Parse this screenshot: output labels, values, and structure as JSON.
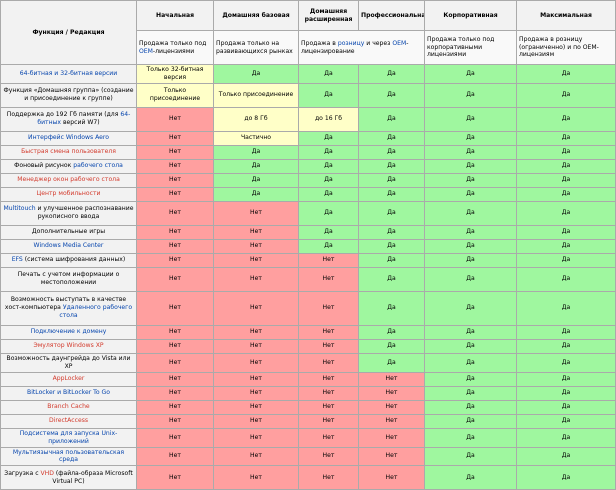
{
  "colors": {
    "yes": "#9ff79f",
    "no": "#ff9f9f",
    "partial": "#ffffc8",
    "header": "#f2f2f2",
    "link": "#0645ad",
    "new_link": "#d33a2c"
  },
  "header": {
    "feature_col": "Функция / Редакция",
    "editions": [
      "Начальная",
      "Домашняя базовая",
      "Домашняя расширенная",
      "Профессиональная",
      "Корпоративная",
      "Максимальная"
    ]
  },
  "sales": [
    [
      {
        "t": "Продажа только под "
      },
      {
        "t": "OEM",
        "l": 1
      },
      {
        "t": "-лицензиями"
      }
    ],
    [
      {
        "t": "Продажа только на развивающихся рынках"
      }
    ],
    [
      {
        "t": "Продажа в "
      },
      {
        "t": "розницу",
        "l": 1
      },
      {
        "t": " и через "
      },
      {
        "t": "OEM",
        "l": 1
      },
      {
        "t": "-лицензирование"
      }
    ],
    [
      {
        "t": "Продажа только под корпоративными лицензиями"
      }
    ],
    [
      {
        "t": "Продажа в розницу (ограниченно) и по OEM-лицензиям"
      }
    ]
  ],
  "rows": [
    {
      "f": [
        {
          "t": "64-битная и 32-битная версии",
          "l": 1
        }
      ],
      "h": 15,
      "c": [
        {
          "t": "Только 32-битная версия",
          "s": "partial"
        },
        {
          "t": "Да",
          "s": "yes"
        },
        {
          "t": "Да",
          "s": "yes"
        },
        {
          "t": "Да",
          "s": "yes"
        },
        {
          "t": "Да",
          "s": "yes"
        },
        {
          "t": "Да",
          "s": "yes"
        }
      ]
    },
    {
      "f": [
        {
          "t": "Функция «Домашняя группа» (создание и присоединение к группе)"
        }
      ],
      "h": 24,
      "c": [
        {
          "t": "Только присоединение",
          "s": "partial"
        },
        {
          "t": "Только присоединение",
          "s": "partial"
        },
        {
          "t": "Да",
          "s": "yes"
        },
        {
          "t": "Да",
          "s": "yes"
        },
        {
          "t": "Да",
          "s": "yes"
        },
        {
          "t": "Да",
          "s": "yes"
        }
      ]
    },
    {
      "f": [
        {
          "t": "Поддержка до 192 Гб памяти (для "
        },
        {
          "t": "64-битных",
          "l": 1
        },
        {
          "t": " версий W7)"
        }
      ],
      "h": 24,
      "c": [
        {
          "t": "Нет",
          "s": "no"
        },
        {
          "t": "до 8 Гб",
          "s": "partial"
        },
        {
          "t": "до 16 Гб",
          "s": "partial"
        },
        {
          "t": "Да",
          "s": "yes"
        },
        {
          "t": "Да",
          "s": "yes"
        },
        {
          "t": "Да",
          "s": "yes"
        }
      ]
    },
    {
      "f": [
        {
          "t": "Интерфейс Windows Aero",
          "l": 1
        }
      ],
      "h": 14,
      "c": [
        {
          "t": "Нет",
          "s": "no"
        },
        {
          "t": "Частично",
          "s": "partial"
        },
        {
          "t": "Да",
          "s": "yes"
        },
        {
          "t": "Да",
          "s": "yes"
        },
        {
          "t": "Да",
          "s": "yes"
        },
        {
          "t": "Да",
          "s": "yes"
        }
      ]
    },
    {
      "f": [
        {
          "t": "Быстрая смена пользователя",
          "l": 2
        }
      ],
      "h": 14,
      "c": [
        {
          "t": "Нет",
          "s": "no"
        },
        {
          "t": "Да",
          "s": "yes"
        },
        {
          "t": "Да",
          "s": "yes"
        },
        {
          "t": "Да",
          "s": "yes"
        },
        {
          "t": "Да",
          "s": "yes"
        },
        {
          "t": "Да",
          "s": "yes"
        }
      ]
    },
    {
      "f": [
        {
          "t": "Фоновый рисунок "
        },
        {
          "t": "рабочего стола",
          "l": 1
        }
      ],
      "h": 14,
      "c": [
        {
          "t": "Нет",
          "s": "no"
        },
        {
          "t": "Да",
          "s": "yes"
        },
        {
          "t": "Да",
          "s": "yes"
        },
        {
          "t": "Да",
          "s": "yes"
        },
        {
          "t": "Да",
          "s": "yes"
        },
        {
          "t": "Да",
          "s": "yes"
        }
      ]
    },
    {
      "f": [
        {
          "t": "Менеджер окон рабочего стола",
          "l": 2
        }
      ],
      "h": 14,
      "c": [
        {
          "t": "Нет",
          "s": "no"
        },
        {
          "t": "Да",
          "s": "yes"
        },
        {
          "t": "Да",
          "s": "yes"
        },
        {
          "t": "Да",
          "s": "yes"
        },
        {
          "t": "Да",
          "s": "yes"
        },
        {
          "t": "Да",
          "s": "yes"
        }
      ]
    },
    {
      "f": [
        {
          "t": "Центр мобильности",
          "l": 2
        }
      ],
      "h": 14,
      "c": [
        {
          "t": "Нет",
          "s": "no"
        },
        {
          "t": "Да",
          "s": "yes"
        },
        {
          "t": "Да",
          "s": "yes"
        },
        {
          "t": "Да",
          "s": "yes"
        },
        {
          "t": "Да",
          "s": "yes"
        },
        {
          "t": "Да",
          "s": "yes"
        }
      ]
    },
    {
      "f": [
        {
          "t": "Multitouch",
          "l": 1
        },
        {
          "t": " и улучшенное распознавание рукописного ввода"
        }
      ],
      "h": 24,
      "c": [
        {
          "t": "Нет",
          "s": "no"
        },
        {
          "t": "Нет",
          "s": "no"
        },
        {
          "t": "Да",
          "s": "yes"
        },
        {
          "t": "Да",
          "s": "yes"
        },
        {
          "t": "Да",
          "s": "yes"
        },
        {
          "t": "Да",
          "s": "yes"
        }
      ]
    },
    {
      "f": [
        {
          "t": "Дополнительные игры"
        }
      ],
      "h": 14,
      "c": [
        {
          "t": "Нет",
          "s": "no"
        },
        {
          "t": "Нет",
          "s": "no"
        },
        {
          "t": "Да",
          "s": "yes"
        },
        {
          "t": "Да",
          "s": "yes"
        },
        {
          "t": "Да",
          "s": "yes"
        },
        {
          "t": "Да",
          "s": "yes"
        }
      ]
    },
    {
      "f": [
        {
          "t": "Windows Media Center",
          "l": 1
        }
      ],
      "h": 14,
      "c": [
        {
          "t": "Нет",
          "s": "no"
        },
        {
          "t": "Нет",
          "s": "no"
        },
        {
          "t": "Да",
          "s": "yes"
        },
        {
          "t": "Да",
          "s": "yes"
        },
        {
          "t": "Да",
          "s": "yes"
        },
        {
          "t": "Да",
          "s": "yes"
        }
      ]
    },
    {
      "f": [
        {
          "t": "EFS",
          "l": 1
        },
        {
          "t": " (система шифрования данных)"
        }
      ],
      "h": 14,
      "c": [
        {
          "t": "Нет",
          "s": "no"
        },
        {
          "t": "Нет",
          "s": "no"
        },
        {
          "t": "Нет",
          "s": "no"
        },
        {
          "t": "Да",
          "s": "yes"
        },
        {
          "t": "Да",
          "s": "yes"
        },
        {
          "t": "Да",
          "s": "yes"
        }
      ]
    },
    {
      "f": [
        {
          "t": "Печать с учетом информации о местоположении"
        }
      ],
      "h": 24,
      "c": [
        {
          "t": "Нет",
          "s": "no"
        },
        {
          "t": "Нет",
          "s": "no"
        },
        {
          "t": "Нет",
          "s": "no"
        },
        {
          "t": "Да",
          "s": "yes"
        },
        {
          "t": "Да",
          "s": "yes"
        },
        {
          "t": "Да",
          "s": "yes"
        }
      ]
    },
    {
      "f": [
        {
          "t": "Возможность выступать в качестве хост-компьютера "
        },
        {
          "t": "Удаленного рабочего стола",
          "l": 1
        }
      ],
      "h": 34,
      "c": [
        {
          "t": "Нет",
          "s": "no"
        },
        {
          "t": "Нет",
          "s": "no"
        },
        {
          "t": "Нет",
          "s": "no"
        },
        {
          "t": "Да",
          "s": "yes"
        },
        {
          "t": "Да",
          "s": "yes"
        },
        {
          "t": "Да",
          "s": "yes"
        }
      ]
    },
    {
      "f": [
        {
          "t": "Подключение к домену",
          "l": 1
        }
      ],
      "h": 14,
      "c": [
        {
          "t": "Нет",
          "s": "no"
        },
        {
          "t": "Нет",
          "s": "no"
        },
        {
          "t": "Нет",
          "s": "no"
        },
        {
          "t": "Да",
          "s": "yes"
        },
        {
          "t": "Да",
          "s": "yes"
        },
        {
          "t": "Да",
          "s": "yes"
        }
      ]
    },
    {
      "f": [
        {
          "t": "Эмулятор Windows XP",
          "l": 2
        }
      ],
      "h": 14,
      "c": [
        {
          "t": "Нет",
          "s": "no"
        },
        {
          "t": "Нет",
          "s": "no"
        },
        {
          "t": "Нет",
          "s": "no"
        },
        {
          "t": "Да",
          "s": "yes"
        },
        {
          "t": "Да",
          "s": "yes"
        },
        {
          "t": "Да",
          "s": "yes"
        }
      ]
    },
    {
      "f": [
        {
          "t": "Возможность даунгрейда до Vista или XP"
        }
      ],
      "h": 14,
      "c": [
        {
          "t": "Нет",
          "s": "no"
        },
        {
          "t": "Нет",
          "s": "no"
        },
        {
          "t": "Нет",
          "s": "no"
        },
        {
          "t": "Да",
          "s": "yes"
        },
        {
          "t": "Да",
          "s": "yes"
        },
        {
          "t": "Да",
          "s": "yes"
        }
      ]
    },
    {
      "f": [
        {
          "t": "AppLocker",
          "l": 2
        }
      ],
      "h": 14,
      "c": [
        {
          "t": "Нет",
          "s": "no"
        },
        {
          "t": "Нет",
          "s": "no"
        },
        {
          "t": "Нет",
          "s": "no"
        },
        {
          "t": "Нет",
          "s": "no"
        },
        {
          "t": "Да",
          "s": "yes"
        },
        {
          "t": "Да",
          "s": "yes"
        }
      ]
    },
    {
      "f": [
        {
          "t": "BitLocker и BitLocker To Go",
          "l": 1
        }
      ],
      "h": 14,
      "c": [
        {
          "t": "Нет",
          "s": "no"
        },
        {
          "t": "Нет",
          "s": "no"
        },
        {
          "t": "Нет",
          "s": "no"
        },
        {
          "t": "Нет",
          "s": "no"
        },
        {
          "t": "Да",
          "s": "yes"
        },
        {
          "t": "Да",
          "s": "yes"
        }
      ]
    },
    {
      "f": [
        {
          "t": "Branch Cache",
          "l": 2
        }
      ],
      "h": 14,
      "c": [
        {
          "t": "Нет",
          "s": "no"
        },
        {
          "t": "Нет",
          "s": "no"
        },
        {
          "t": "Нет",
          "s": "no"
        },
        {
          "t": "Нет",
          "s": "no"
        },
        {
          "t": "Да",
          "s": "yes"
        },
        {
          "t": "Да",
          "s": "yes"
        }
      ]
    },
    {
      "f": [
        {
          "t": "DirectAccess",
          "l": 2
        }
      ],
      "h": 14,
      "c": [
        {
          "t": "Нет",
          "s": "no"
        },
        {
          "t": "Нет",
          "s": "no"
        },
        {
          "t": "Нет",
          "s": "no"
        },
        {
          "t": "Нет",
          "s": "no"
        },
        {
          "t": "Да",
          "s": "yes"
        },
        {
          "t": "Да",
          "s": "yes"
        }
      ]
    },
    {
      "f": [
        {
          "t": "Подсистема для запуска Unix-приложений",
          "l": 1
        }
      ],
      "h": 14,
      "c": [
        {
          "t": "Нет",
          "s": "no"
        },
        {
          "t": "Нет",
          "s": "no"
        },
        {
          "t": "Нет",
          "s": "no"
        },
        {
          "t": "Нет",
          "s": "no"
        },
        {
          "t": "Да",
          "s": "yes"
        },
        {
          "t": "Да",
          "s": "yes"
        }
      ]
    },
    {
      "f": [
        {
          "t": "Мультиязычная пользовательская среда",
          "l": 1
        }
      ],
      "h": 14,
      "c": [
        {
          "t": "Нет",
          "s": "no"
        },
        {
          "t": "Нет",
          "s": "no"
        },
        {
          "t": "Нет",
          "s": "no"
        },
        {
          "t": "Нет",
          "s": "no"
        },
        {
          "t": "Да",
          "s": "yes"
        },
        {
          "t": "Да",
          "s": "yes"
        }
      ]
    },
    {
      "f": [
        {
          "t": "Загрузка с "
        },
        {
          "t": "VHD",
          "l": 2
        },
        {
          "t": " (файла-образа Microsoft Virtual PC)"
        }
      ],
      "h": 24,
      "c": [
        {
          "t": "Нет",
          "s": "no"
        },
        {
          "t": "Нет",
          "s": "no"
        },
        {
          "t": "Нет",
          "s": "no"
        },
        {
          "t": "Нет",
          "s": "no"
        },
        {
          "t": "Да",
          "s": "yes"
        },
        {
          "t": "Да",
          "s": "yes"
        }
      ]
    }
  ]
}
